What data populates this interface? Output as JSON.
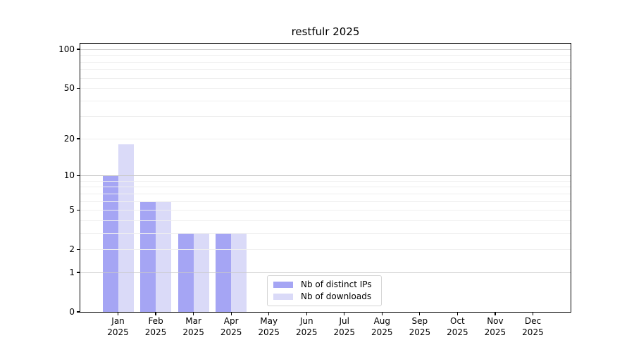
{
  "page": {
    "background": "#ffffff"
  },
  "colors": {
    "bar_distinct_ips": "#a5a5f4",
    "bar_downloads": "#dadaf8",
    "grid_major": "#c9c9c9",
    "grid_minor": "#efefef",
    "spine": "#000000",
    "text": "#000000",
    "legend_border": "#d4d4d4"
  },
  "chart_data": {
    "type": "bar",
    "title": "restfulr 2025",
    "categories": [
      "Jan",
      "Feb",
      "Mar",
      "Apr",
      "May",
      "Jun",
      "Jul",
      "Aug",
      "Sep",
      "Oct",
      "Nov",
      "Dec"
    ],
    "category_year_line": "2025",
    "series": [
      {
        "name": "Nb of distinct IPs",
        "color": "#a5a5f4",
        "values": [
          10,
          6,
          3,
          3,
          0,
          0,
          0,
          0,
          0,
          0,
          0,
          0
        ]
      },
      {
        "name": "Nb of downloads",
        "color": "#dadaf8",
        "values": [
          18,
          6,
          3,
          3,
          0,
          0,
          0,
          0,
          0,
          0,
          0,
          0
        ]
      }
    ],
    "y_axis": {
      "scale": "log10(value+1)",
      "ticks": [
        0,
        1,
        2,
        5,
        10,
        20,
        50,
        100
      ],
      "major_gridlines": [
        1,
        10,
        100
      ],
      "minor_gridlines": [
        2,
        3,
        4,
        5,
        6,
        7,
        8,
        9,
        20,
        30,
        40,
        50,
        60,
        70,
        80,
        90
      ],
      "range": [
        0,
        111
      ]
    },
    "grid": true,
    "legend": {
      "position": "inside-bottom-center"
    }
  }
}
